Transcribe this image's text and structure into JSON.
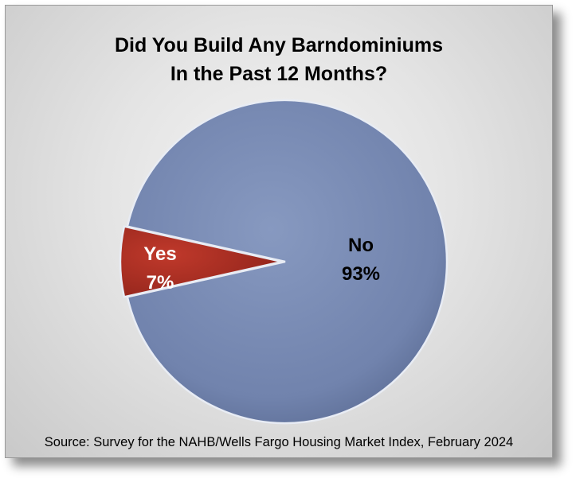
{
  "chart_data": {
    "type": "pie",
    "title": [
      "Did You Build Any Barndominiums",
      "In the Past 12 Months?"
    ],
    "slices": [
      {
        "label": "No",
        "value": 93,
        "value_label": "93%",
        "color": "#7386b0"
      },
      {
        "label": "Yes",
        "value": 7,
        "value_label": "7%",
        "color": "#a52a1f"
      }
    ],
    "source": "Source: Survey for the NAHB/Wells Fargo Housing Market Index, February 2024"
  },
  "colors": {
    "no_label": "#000000",
    "yes_label": "#ffffff"
  }
}
